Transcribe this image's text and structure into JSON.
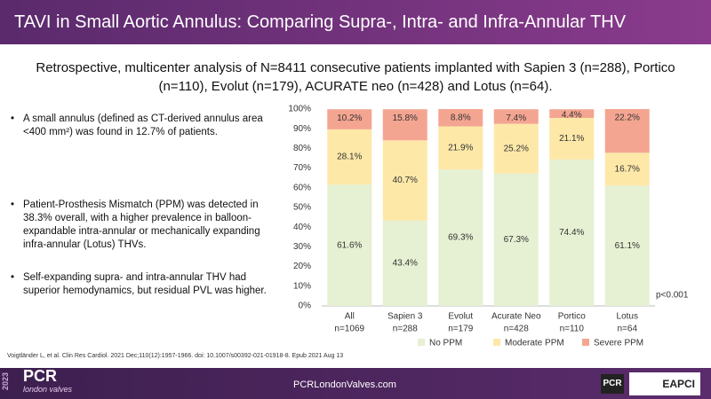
{
  "header": {
    "title": "TAVI in Small Aortic Annulus: Comparing Supra-, Intra- and Infra-Annular THV"
  },
  "subtitle": "Retrospective, multicenter analysis of N=8411 consecutive patients implanted with Sapien 3 (n=288), Portico (n=110), Evolut (n=179), ACURATE neo (n=428) and Lotus (n=64).",
  "bullets": [
    "A small annulus (defined as CT-derived annulus area <400 mm²) was found in 12.7% of patients.",
    "Patient-Prosthesis Mismatch (PPM) was detected in 38.3% overall, with a higher prevalence in balloon-expandable intra-annular or mechanically expanding infra-annular (Lotus) THVs.",
    "Self-expanding supra- and intra-annular THV had superior hemodynamics, but residual PVL was higher."
  ],
  "citation": "Voigtländer L, et al. Clin Res Cardiol. 2021 Dec;110(12):1957-1966. doi: 10.1007/s00392-021-01918-8. Epub 2021 Aug 13",
  "footer": {
    "year": "2023",
    "brand": "PCR",
    "brand_sub": "london valves",
    "website": "PCRLondonValves.com",
    "logo_left": "PCR",
    "logo_right": "EAPCI"
  },
  "chart_data": {
    "type": "stacked_bar",
    "categories": [
      "All",
      "Sapien 3",
      "Evolut",
      "Acurate Neo",
      "Portico",
      "Lotus"
    ],
    "category_counts": [
      "n=1069",
      "n=288",
      "n=179",
      "n=428",
      "n=110",
      "n=64"
    ],
    "series": [
      {
        "name": "No PPM",
        "color": "#e6f0d2",
        "values": [
          61.6,
          43.4,
          69.3,
          67.3,
          74.4,
          61.1
        ],
        "value_labels": [
          "61.6%",
          "43.4%",
          "69.3%",
          "67.3%",
          "74.4%",
          "61.1%"
        ]
      },
      {
        "name": "Moderate PPM",
        "color": "#fde8a8",
        "values": [
          28.1,
          40.7,
          21.9,
          25.2,
          21.1,
          16.7
        ],
        "value_labels": [
          "28.1%",
          "40.7%",
          "21.9%",
          "25.2%",
          "21.1%",
          "16.7%"
        ]
      },
      {
        "name": "Severe PPM",
        "color": "#f4a591",
        "values": [
          10.2,
          15.8,
          8.8,
          7.4,
          4.4,
          22.2
        ],
        "value_labels": [
          "10.2%",
          "15.8%",
          "8.8%",
          "7.4%",
          "4.4%",
          "22.2%"
        ]
      }
    ],
    "ylim": [
      0,
      100
    ],
    "yticks": [
      {
        "value": 0,
        "label": "0%"
      },
      {
        "value": 10,
        "label": "10%"
      },
      {
        "value": 20,
        "label": "20%"
      },
      {
        "value": 30,
        "label": "30%"
      },
      {
        "value": 40,
        "label": "40%"
      },
      {
        "value": 50,
        "label": "50%"
      },
      {
        "value": 60,
        "label": "60%"
      },
      {
        "value": 70,
        "label": "70%"
      },
      {
        "value": 80,
        "label": "80%"
      },
      {
        "value": 90,
        "label": "90%"
      },
      {
        "value": 100,
        "label": "100%"
      }
    ],
    "annotation": "p<0.001",
    "legend": "bottom"
  }
}
